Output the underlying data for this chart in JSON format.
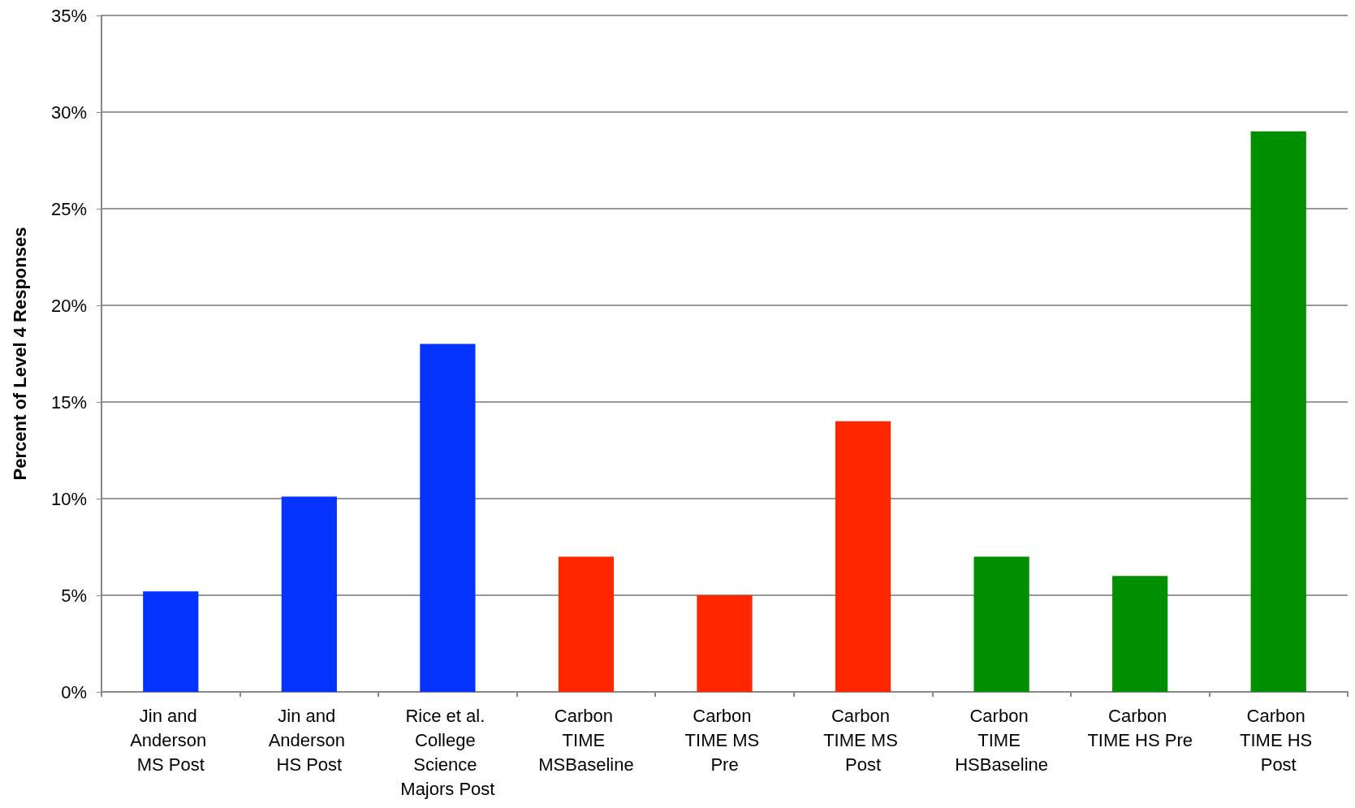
{
  "chart_data": {
    "type": "bar",
    "ylabel": "Percent of Level 4 Responses",
    "categories": [
      "Jin and Anderson MS Post",
      "Jin and Anderson HS Post",
      "Rice et al. College Science Majors Post",
      "Carbon TIME MSBaseline",
      "Carbon TIME MS Pre",
      "Carbon TIME MS Post",
      "Carbon TIME HSBaseline",
      "Carbon TIME HS Pre",
      "Carbon TIME HS Post"
    ],
    "values": [
      5.2,
      10.1,
      18,
      7,
      5,
      14,
      7,
      6,
      29
    ],
    "colors": [
      "#0433ff",
      "#0433ff",
      "#0433ff",
      "#ff2600",
      "#ff2600",
      "#ff2600",
      "#008f00",
      "#008f00",
      "#008f00"
    ],
    "ylim": [
      0,
      35
    ],
    "yticks": [
      {
        "value": 0,
        "label": "0%"
      },
      {
        "value": 5,
        "label": "5%"
      },
      {
        "value": 10,
        "label": "10%"
      },
      {
        "value": 15,
        "label": "15%"
      },
      {
        "value": 20,
        "label": "20%"
      },
      {
        "value": 25,
        "label": "25%"
      },
      {
        "value": 30,
        "label": "30%"
      },
      {
        "value": 35,
        "label": "35%"
      }
    ],
    "grid": "y"
  }
}
